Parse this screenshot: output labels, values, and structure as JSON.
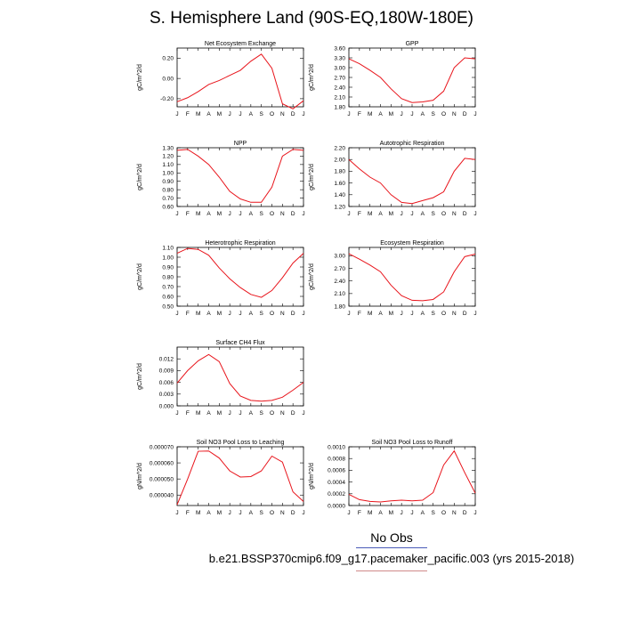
{
  "title": "S. Hemisphere Land (90S-EQ,180W-180E)",
  "legend": {
    "label": "No Obs",
    "colors": {
      "top_line": "#4a5ab8",
      "bottom_line": "#d08a8a"
    }
  },
  "caption": "b.e21.BSSP370cmip6.f09_g17.pacemaker_pacific.003 (yrs 2015-2018)",
  "line_color": "#e8141b",
  "chart_data": [
    {
      "type": "line",
      "title": "Net Ecosystem Exchange",
      "ylabel": "gC/m^2/d",
      "categories": [
        "J",
        "F",
        "M",
        "A",
        "M",
        "J",
        "J",
        "A",
        "S",
        "O",
        "N",
        "D",
        "J"
      ],
      "values": [
        -0.23,
        -0.19,
        -0.13,
        -0.06,
        -0.02,
        0.03,
        0.08,
        0.17,
        0.24,
        0.1,
        -0.25,
        -0.3,
        -0.22
      ],
      "ylim": [
        -0.28,
        0.3
      ],
      "yticks": [
        -0.2,
        0.0,
        0.2
      ],
      "ytick_labels": [
        "-0.20",
        "0.00",
        "0.20"
      ]
    },
    {
      "type": "line",
      "title": "GPP",
      "ylabel": "gC/m^2/d",
      "categories": [
        "J",
        "F",
        "M",
        "A",
        "M",
        "J",
        "J",
        "A",
        "S",
        "O",
        "N",
        "D",
        "J"
      ],
      "values": [
        3.27,
        3.12,
        2.92,
        2.7,
        2.35,
        2.05,
        1.93,
        1.95,
        2.0,
        2.28,
        3.0,
        3.3,
        3.27
      ],
      "ylim": [
        1.8,
        3.6
      ],
      "yticks": [
        1.8,
        2.1,
        2.4,
        2.7,
        3.0,
        3.3,
        3.6
      ],
      "ytick_labels": [
        "1.80",
        "2.10",
        "2.40",
        "2.70",
        "3.00",
        "3.30",
        "3.60"
      ]
    },
    {
      "type": "line",
      "title": "NPP",
      "ylabel": "gC/m^2/d",
      "categories": [
        "J",
        "F",
        "M",
        "A",
        "M",
        "J",
        "J",
        "A",
        "S",
        "O",
        "N",
        "D",
        "J"
      ],
      "values": [
        1.27,
        1.28,
        1.2,
        1.1,
        0.95,
        0.78,
        0.69,
        0.65,
        0.65,
        0.83,
        1.2,
        1.28,
        1.27
      ],
      "ylim": [
        0.6,
        1.3
      ],
      "yticks": [
        0.6,
        0.7,
        0.8,
        0.9,
        1.0,
        1.1,
        1.2,
        1.3
      ],
      "ytick_labels": [
        "0.60",
        "0.70",
        "0.80",
        "0.90",
        "1.00",
        "1.10",
        "1.20",
        "1.30"
      ]
    },
    {
      "type": "line",
      "title": "Autotrophic Respiration",
      "ylabel": "gC/m^2/d",
      "categories": [
        "J",
        "F",
        "M",
        "A",
        "M",
        "J",
        "J",
        "A",
        "S",
        "O",
        "N",
        "D",
        "J"
      ],
      "values": [
        2.0,
        1.84,
        1.7,
        1.6,
        1.4,
        1.27,
        1.25,
        1.3,
        1.35,
        1.45,
        1.8,
        2.02,
        2.0
      ],
      "ylim": [
        1.2,
        2.2
      ],
      "yticks": [
        1.2,
        1.4,
        1.6,
        1.8,
        2.0,
        2.2
      ],
      "ytick_labels": [
        "1.20",
        "1.40",
        "1.60",
        "1.80",
        "2.00",
        "2.20"
      ]
    },
    {
      "type": "line",
      "title": "Heterotrophic Respiration",
      "ylabel": "gC/m^2/d",
      "categories": [
        "J",
        "F",
        "M",
        "A",
        "M",
        "J",
        "J",
        "A",
        "S",
        "O",
        "N",
        "D",
        "J"
      ],
      "values": [
        1.04,
        1.09,
        1.08,
        1.02,
        0.89,
        0.78,
        0.69,
        0.62,
        0.59,
        0.66,
        0.79,
        0.94,
        1.04
      ],
      "ylim": [
        0.5,
        1.1
      ],
      "yticks": [
        0.5,
        0.6,
        0.7,
        0.8,
        0.9,
        1.0,
        1.1
      ],
      "ytick_labels": [
        "0.50",
        "0.60",
        "0.70",
        "0.80",
        "0.90",
        "1.00",
        "1.10"
      ]
    },
    {
      "type": "line",
      "title": "Ecosystem Respiration",
      "ylabel": "gC/m^2/d",
      "categories": [
        "J",
        "F",
        "M",
        "A",
        "M",
        "J",
        "J",
        "A",
        "S",
        "O",
        "N",
        "D",
        "J"
      ],
      "values": [
        3.05,
        2.92,
        2.78,
        2.62,
        2.3,
        2.05,
        1.94,
        1.93,
        1.96,
        2.14,
        2.62,
        2.98,
        3.04
      ],
      "ylim": [
        1.8,
        3.2
      ],
      "yticks": [
        1.8,
        2.1,
        2.4,
        2.7,
        3.0
      ],
      "ytick_labels": [
        "1.80",
        "2.10",
        "2.40",
        "2.70",
        "3.00"
      ]
    },
    {
      "type": "line",
      "title": "Surface CH4 Flux",
      "ylabel": "gC/m^2/d",
      "categories": [
        "J",
        "F",
        "M",
        "A",
        "M",
        "J",
        "J",
        "A",
        "S",
        "O",
        "N",
        "D",
        "J"
      ],
      "values": [
        0.0058,
        0.009,
        0.0115,
        0.0131,
        0.0113,
        0.0057,
        0.0025,
        0.0014,
        0.0012,
        0.0014,
        0.0022,
        0.004,
        0.006
      ],
      "ylim": [
        0.0,
        0.015
      ],
      "yticks": [
        0.0,
        0.003,
        0.006,
        0.009,
        0.012
      ],
      "ytick_labels": [
        "0.000",
        "0.003",
        "0.006",
        "0.009",
        "0.012"
      ]
    },
    {
      "type": "line",
      "title": "Soil NO3 Pool Loss to Leaching",
      "ylabel": "gN/m^2/d",
      "categories": [
        "J",
        "F",
        "M",
        "A",
        "M",
        "J",
        "J",
        "A",
        "S",
        "O",
        "N",
        "D",
        "J"
      ],
      "values": [
        3.4e-05,
        5e-05,
        6.72e-05,
        6.74e-05,
        6.3e-05,
        5.5e-05,
        5.12e-05,
        5.15e-05,
        5.5e-05,
        6.42e-05,
        6.05e-05,
        4.2e-05,
        3.6e-05
      ],
      "ylim": [
        3.35e-05,
        7e-05
      ],
      "yticks": [
        4e-05,
        5e-05,
        6e-05,
        7e-05
      ],
      "ytick_labels": [
        "0.000040",
        "0.000050",
        "0.000060",
        "0.000070"
      ]
    },
    {
      "type": "line",
      "title": "Soil NO3 Pool Loss to Runoff",
      "ylabel": "gN/m^2/d",
      "categories": [
        "J",
        "F",
        "M",
        "A",
        "M",
        "J",
        "J",
        "A",
        "S",
        "O",
        "N",
        "D",
        "J"
      ],
      "values": [
        0.00019,
        0.0001,
        7e-05,
        6e-05,
        8e-05,
        9e-05,
        8e-05,
        9e-05,
        0.00022,
        0.00069,
        0.00093,
        0.00056,
        0.00021
      ],
      "ylim": [
        0.0,
        0.001
      ],
      "yticks": [
        0.0,
        0.0002,
        0.0004,
        0.0006,
        0.0008,
        0.001
      ],
      "ytick_labels": [
        "0.0000",
        "0.0002",
        "0.0004",
        "0.0006",
        "0.0008",
        "0.0010"
      ]
    }
  ]
}
